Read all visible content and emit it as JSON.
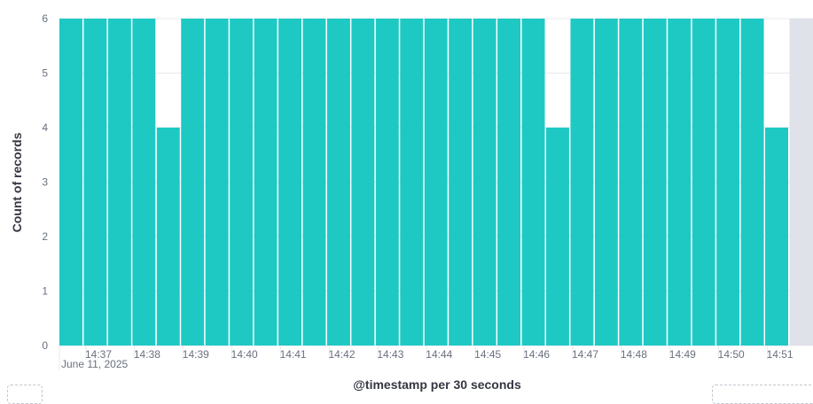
{
  "chart_data": {
    "type": "bar",
    "xlabel": "@timestamp per 30 seconds",
    "ylabel": "Count of records",
    "ylim": [
      0,
      6
    ],
    "yticks": [
      0,
      1,
      2,
      3,
      4,
      5,
      6
    ],
    "interval_seconds": 30,
    "date_label": "June 11, 2025",
    "x_tick_labels": [
      "14:37",
      "14:38",
      "14:39",
      "14:40",
      "14:41",
      "14:42",
      "14:43",
      "14:44",
      "14:45",
      "14:46",
      "14:47",
      "14:48",
      "14:49",
      "14:50",
      "14:51"
    ],
    "categories": [
      "14:36:30",
      "14:37:00",
      "14:37:30",
      "14:38:00",
      "14:38:30",
      "14:39:00",
      "14:39:30",
      "14:40:00",
      "14:40:30",
      "14:41:00",
      "14:41:30",
      "14:42:00",
      "14:42:30",
      "14:43:00",
      "14:43:30",
      "14:44:00",
      "14:44:30",
      "14:45:00",
      "14:45:30",
      "14:46:00",
      "14:46:30",
      "14:47:00",
      "14:47:30",
      "14:48:00",
      "14:48:30",
      "14:49:00",
      "14:49:30",
      "14:50:00",
      "14:50:30",
      "14:51:00"
    ],
    "values": [
      6,
      6,
      6,
      6,
      4,
      6,
      6,
      6,
      6,
      6,
      6,
      6,
      6,
      6,
      6,
      6,
      6,
      6,
      6,
      6,
      4,
      6,
      6,
      6,
      6,
      6,
      6,
      6,
      6,
      4
    ],
    "grid": true,
    "colors": {
      "bar": "#1ec9c4",
      "grid": "#e8eaef",
      "out_of_range": "#dfe2e8",
      "tick_text": "#69707d",
      "axis_title": "#343741"
    }
  }
}
